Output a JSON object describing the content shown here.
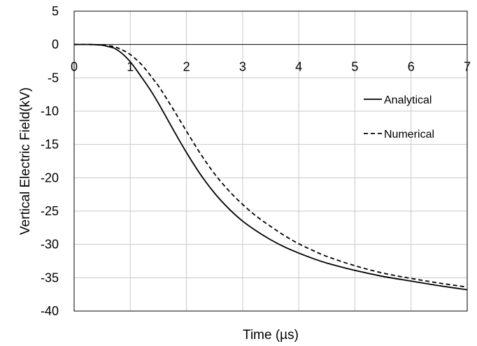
{
  "chart_data": {
    "type": "line",
    "title": "",
    "xlabel": "Time (µs)",
    "ylabel": "Vertical Electric Field(kV)",
    "xlim": [
      0,
      7
    ],
    "ylim": [
      -40,
      5
    ],
    "x_ticks": [
      0,
      1,
      2,
      3,
      4,
      5,
      6,
      7
    ],
    "x_tick_labels": [
      "0",
      "1",
      "2",
      "3",
      "4",
      "5",
      "6",
      "7"
    ],
    "y_ticks": [
      5,
      0,
      -5,
      -10,
      -15,
      -20,
      -25,
      -30,
      -35,
      -40
    ],
    "y_tick_labels": [
      "5",
      "0",
      "-5",
      "-10",
      "-15",
      "-20",
      "-25",
      "-30",
      "-35",
      "-40"
    ],
    "grid": true,
    "legend_position": "right",
    "series": [
      {
        "name": "Analytical",
        "style": "solid",
        "color": "#000000",
        "x": [
          0,
          0.3,
          0.5,
          0.6,
          0.7,
          0.8,
          0.9,
          1.0,
          1.1,
          1.2,
          1.3,
          1.4,
          1.5,
          1.6,
          1.8,
          2.0,
          2.25,
          2.5,
          2.75,
          3.0,
          3.25,
          3.5,
          3.75,
          4.0,
          4.25,
          4.5,
          5.0,
          5.5,
          6.0,
          6.5,
          7.0
        ],
        "y": [
          0,
          0,
          -0.1,
          -0.3,
          -0.5,
          -1.0,
          -1.7,
          -2.6,
          -3.7,
          -4.9,
          -6.1,
          -7.4,
          -8.8,
          -10.3,
          -13.3,
          -16.2,
          -19.5,
          -22.3,
          -24.6,
          -26.5,
          -28.0,
          -29.3,
          -30.4,
          -31.3,
          -32.1,
          -32.8,
          -33.9,
          -34.8,
          -35.5,
          -36.2,
          -36.8
        ]
      },
      {
        "name": "Numerical",
        "style": "dashed",
        "color": "#000000",
        "x": [
          0,
          0.3,
          0.5,
          0.6,
          0.7,
          0.8,
          0.9,
          1.0,
          1.1,
          1.2,
          1.3,
          1.4,
          1.5,
          1.6,
          1.8,
          2.0,
          2.25,
          2.5,
          2.75,
          3.0,
          3.25,
          3.5,
          3.75,
          4.0,
          4.25,
          4.5,
          5.0,
          5.5,
          6.0,
          6.5,
          7.0
        ],
        "y": [
          0,
          0,
          -0.1,
          -0.2,
          -0.3,
          -0.6,
          -1.0,
          -1.5,
          -2.2,
          -3.0,
          -4.0,
          -5.1,
          -6.2,
          -7.5,
          -10.2,
          -13.0,
          -16.4,
          -19.4,
          -21.9,
          -24.0,
          -25.8,
          -27.3,
          -28.7,
          -29.9,
          -30.9,
          -31.8,
          -33.2,
          -34.3,
          -35.1,
          -35.8,
          -36.4
        ]
      }
    ]
  }
}
